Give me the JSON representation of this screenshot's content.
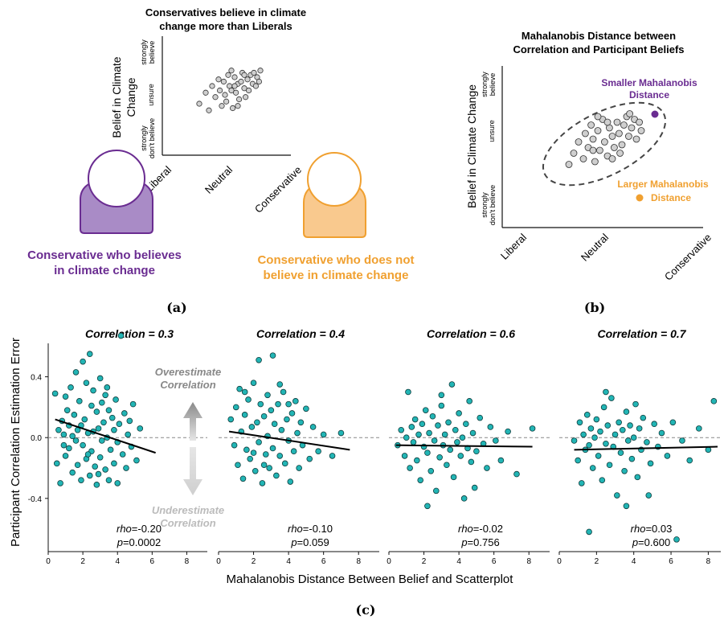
{
  "panel_a": {
    "title_line1": "Conservatives believe in climate",
    "title_line2": "change more than Liberals",
    "ylabel_line1": "Belief in Climate",
    "ylabel_line2": "Change",
    "yticks": [
      "strongly don't believe",
      "unsure",
      "strongly believe"
    ],
    "ytick_strong_1": "strongly",
    "ytick_strong_2": "believe",
    "ytick_dont_1": "strongly",
    "ytick_dont_2": "don't believe",
    "xticks": [
      "Liberal",
      "Neutral",
      "Conservative"
    ],
    "person_left_line1": "Conservative who believes",
    "person_left_line2": "in climate change",
    "person_right_line1": "Conservative who does not",
    "person_right_line2": "believe in climate change",
    "label": "(a)",
    "colors": {
      "left": "#6a2c91",
      "left_fill": "#a98bc6",
      "right": "#f0a030",
      "right_fill": "#f9c98e"
    }
  },
  "panel_b": {
    "title_line1": "Mahalanobis Distance between",
    "title_line2": "Correlation and Participant Beliefs",
    "ylabel": "Belief in Climate Change",
    "xticks": [
      "Liberal",
      "Neutral",
      "Conservative"
    ],
    "smaller_line1": "Smaller Mahalanobis",
    "smaller_line2": "Distance",
    "larger_line1": "Larger Mahalanobis",
    "larger_line2": "Distance",
    "label": "(b)"
  },
  "panel_c": {
    "label": "(c)",
    "ylabel": "Participant Correlation Estimation Error",
    "xlabel": "Mahalanobis Distance Between Belief and Scatterplot",
    "overestimate_line1": "Overestimate",
    "overestimate_line2": "Correlation",
    "underestimate_line1": "Underestimate",
    "underestimate_line2": "Correlation",
    "point_color": "#22b5b5"
  },
  "chart_data": [
    {
      "type": "scatter",
      "title": "Correlation = 0.3",
      "xlim": [
        0,
        9
      ],
      "ylim": [
        -0.75,
        0.62
      ],
      "xticks": [
        0,
        2,
        4,
        6,
        8
      ],
      "yticks": [
        -0.4,
        0.0,
        0.4
      ],
      "ytick_labels": [
        "-0.4",
        "0.0",
        "0.4"
      ],
      "rho_label": "rho",
      "rho_value": "=-0.20",
      "p_label": "p",
      "p_value": "=0.0002",
      "trend": {
        "x": [
          0.4,
          6.2
        ],
        "y": [
          0.12,
          -0.1
        ]
      },
      "points": [
        [
          0.4,
          0.29
        ],
        [
          0.5,
          -0.17
        ],
        [
          0.6,
          0.05
        ],
        [
          0.7,
          -0.3
        ],
        [
          0.8,
          0.11
        ],
        [
          0.9,
          0.02
        ],
        [
          1.0,
          0.27
        ],
        [
          1.0,
          -0.12
        ],
        [
          1.1,
          0.18
        ],
        [
          1.2,
          -0.07
        ],
        [
          1.3,
          0.33
        ],
        [
          1.4,
          0.01
        ],
        [
          1.4,
          -0.23
        ],
        [
          1.5,
          0.15
        ],
        [
          1.6,
          -0.02
        ],
        [
          1.6,
          0.43
        ],
        [
          1.7,
          -0.18
        ],
        [
          1.8,
          0.24
        ],
        [
          1.9,
          0.08
        ],
        [
          1.9,
          -0.28
        ],
        [
          2.0,
          0.5
        ],
        [
          2.0,
          -0.05
        ],
        [
          2.1,
          0.12
        ],
        [
          2.2,
          0.36
        ],
        [
          2.2,
          -0.14
        ],
        [
          2.3,
          0.03
        ],
        [
          2.4,
          0.55
        ],
        [
          2.4,
          -0.25
        ],
        [
          2.5,
          0.21
        ],
        [
          2.5,
          -0.09
        ],
        [
          2.6,
          0.31
        ],
        [
          2.6,
          0.04
        ],
        [
          2.7,
          -0.19
        ],
        [
          2.8,
          0.17
        ],
        [
          2.8,
          -0.31
        ],
        [
          2.9,
          0.06
        ],
        [
          3.0,
          0.39
        ],
        [
          3.0,
          -0.13
        ],
        [
          3.1,
          0.23
        ],
        [
          3.1,
          -0.02
        ],
        [
          3.2,
          0.1
        ],
        [
          3.3,
          -0.21
        ],
        [
          3.3,
          0.28
        ],
        [
          3.4,
          0.0
        ],
        [
          3.5,
          0.18
        ],
        [
          3.5,
          -0.28
        ],
        [
          3.6,
          -0.08
        ],
        [
          3.7,
          0.13
        ],
        [
          3.8,
          0.05
        ],
        [
          3.8,
          -0.17
        ],
        [
          3.9,
          0.25
        ],
        [
          4.0,
          -0.03
        ],
        [
          4.0,
          -0.3
        ],
        [
          4.1,
          0.09
        ],
        [
          4.2,
          0.67
        ],
        [
          4.3,
          -0.11
        ],
        [
          4.4,
          0.16
        ],
        [
          4.5,
          -0.2
        ],
        [
          4.6,
          0.02
        ],
        [
          4.7,
          0.11
        ],
        [
          4.8,
          -0.06
        ],
        [
          4.9,
          0.22
        ],
        [
          5.1,
          -0.15
        ],
        [
          5.3,
          0.06
        ],
        [
          1.2,
          0.08
        ],
        [
          2.3,
          -0.11
        ],
        [
          3.4,
          0.33
        ],
        [
          1.7,
          0.05
        ],
        [
          2.9,
          -0.24
        ],
        [
          0.9,
          -0.05
        ]
      ]
    },
    {
      "type": "scatter",
      "title": "Correlation = 0.4",
      "xlim": [
        0,
        9
      ],
      "ylim": [
        -0.75,
        0.62
      ],
      "xticks": [
        0,
        2,
        4,
        6,
        8
      ],
      "rho_label": "rho",
      "rho_value": "=-0.10",
      "p_label": "p",
      "p_value": "=0.059",
      "trend": {
        "x": [
          0.6,
          7.5
        ],
        "y": [
          0.04,
          -0.08
        ]
      },
      "points": [
        [
          0.7,
          0.12
        ],
        [
          0.9,
          -0.05
        ],
        [
          1.0,
          0.2
        ],
        [
          1.1,
          -0.18
        ],
        [
          1.2,
          0.32
        ],
        [
          1.3,
          0.04
        ],
        [
          1.4,
          -0.27
        ],
        [
          1.5,
          0.15
        ],
        [
          1.6,
          -0.08
        ],
        [
          1.7,
          0.25
        ],
        [
          1.8,
          -0.14
        ],
        [
          1.9,
          0.07
        ],
        [
          2.0,
          0.36
        ],
        [
          2.1,
          -0.22
        ],
        [
          2.2,
          0.1
        ],
        [
          2.3,
          0.51
        ],
        [
          2.3,
          -0.03
        ],
        [
          2.4,
          0.22
        ],
        [
          2.5,
          -0.3
        ],
        [
          2.6,
          0.14
        ],
        [
          2.7,
          -0.11
        ],
        [
          2.8,
          0.28
        ],
        [
          2.8,
          0.01
        ],
        [
          2.9,
          -0.2
        ],
        [
          3.0,
          0.18
        ],
        [
          3.1,
          -0.07
        ],
        [
          3.1,
          0.54
        ],
        [
          3.2,
          0.09
        ],
        [
          3.3,
          -0.25
        ],
        [
          3.4,
          0.22
        ],
        [
          3.5,
          -0.12
        ],
        [
          3.6,
          0.05
        ],
        [
          3.7,
          0.3
        ],
        [
          3.8,
          -0.17
        ],
        [
          3.9,
          0.12
        ],
        [
          4.0,
          -0.02
        ],
        [
          4.1,
          -0.29
        ],
        [
          4.2,
          0.16
        ],
        [
          4.3,
          -0.09
        ],
        [
          4.4,
          0.24
        ],
        [
          4.5,
          0.03
        ],
        [
          4.6,
          -0.2
        ],
        [
          4.7,
          0.1
        ],
        [
          4.8,
          -0.05
        ],
        [
          5.0,
          0.19
        ],
        [
          5.2,
          -0.14
        ],
        [
          5.4,
          0.07
        ],
        [
          5.7,
          -0.09
        ],
        [
          6.0,
          0.02
        ],
        [
          6.5,
          -0.12
        ],
        [
          7.0,
          0.03
        ],
        [
          1.5,
          0.3
        ],
        [
          2.6,
          -0.18
        ],
        [
          3.5,
          0.35
        ],
        [
          4.0,
          0.22
        ],
        [
          2.0,
          -0.1
        ]
      ]
    },
    {
      "type": "scatter",
      "title": "Correlation = 0.6",
      "xlim": [
        0,
        9
      ],
      "ylim": [
        -0.75,
        0.62
      ],
      "xticks": [
        0,
        2,
        4,
        6,
        8
      ],
      "rho_label": "rho",
      "rho_value": "=-0.02",
      "p_label": "p",
      "p_value": "=0.756",
      "trend": {
        "x": [
          0.4,
          8.2
        ],
        "y": [
          -0.05,
          -0.06
        ]
      },
      "points": [
        [
          0.5,
          -0.05
        ],
        [
          0.7,
          0.05
        ],
        [
          0.9,
          -0.12
        ],
        [
          1.0,
          0.0
        ],
        [
          1.1,
          0.3
        ],
        [
          1.2,
          -0.2
        ],
        [
          1.3,
          0.07
        ],
        [
          1.4,
          -0.03
        ],
        [
          1.5,
          0.12
        ],
        [
          1.6,
          -0.15
        ],
        [
          1.7,
          0.02
        ],
        [
          1.8,
          -0.28
        ],
        [
          1.9,
          0.09
        ],
        [
          2.0,
          -0.06
        ],
        [
          2.1,
          0.18
        ],
        [
          2.2,
          -0.1
        ],
        [
          2.3,
          0.03
        ],
        [
          2.4,
          -0.22
        ],
        [
          2.5,
          0.14
        ],
        [
          2.6,
          -0.02
        ],
        [
          2.7,
          -0.35
        ],
        [
          2.8,
          0.08
        ],
        [
          2.9,
          -0.13
        ],
        [
          3.0,
          0.21
        ],
        [
          3.1,
          -0.05
        ],
        [
          3.2,
          0.02
        ],
        [
          3.3,
          -0.18
        ],
        [
          3.4,
          0.1
        ],
        [
          3.5,
          -0.08
        ],
        [
          3.6,
          0.35
        ],
        [
          3.7,
          -0.26
        ],
        [
          3.8,
          0.05
        ],
        [
          3.9,
          -0.03
        ],
        [
          4.0,
          0.16
        ],
        [
          4.1,
          -0.12
        ],
        [
          4.2,
          0.0
        ],
        [
          4.3,
          -0.4
        ],
        [
          4.4,
          0.09
        ],
        [
          4.5,
          -0.07
        ],
        [
          4.6,
          0.24
        ],
        [
          4.7,
          -0.16
        ],
        [
          4.8,
          0.03
        ],
        [
          5.0,
          -0.09
        ],
        [
          5.2,
          0.13
        ],
        [
          5.4,
          -0.04
        ],
        [
          5.6,
          -0.2
        ],
        [
          5.8,
          0.07
        ],
        [
          6.1,
          -0.02
        ],
        [
          6.4,
          -0.15
        ],
        [
          6.8,
          0.04
        ],
        [
          7.3,
          -0.24
        ],
        [
          8.2,
          0.06
        ],
        [
          2.2,
          -0.45
        ],
        [
          3.0,
          0.28
        ],
        [
          4.9,
          -0.33
        ]
      ]
    },
    {
      "type": "scatter",
      "title": "Correlation = 0.7",
      "xlim": [
        0,
        8.5
      ],
      "ylim": [
        -0.75,
        0.62
      ],
      "xticks": [
        0,
        2,
        4,
        6,
        8
      ],
      "rho_label": "rho",
      "rho_value": "=0.03",
      "p_label": "p",
      "p_value": "=0.600",
      "trend": {
        "x": [
          0.8,
          8.5
        ],
        "y": [
          -0.08,
          -0.06
        ]
      },
      "points": [
        [
          0.8,
          -0.02
        ],
        [
          1.0,
          -0.15
        ],
        [
          1.1,
          0.1
        ],
        [
          1.2,
          -0.3
        ],
        [
          1.3,
          0.02
        ],
        [
          1.4,
          -0.08
        ],
        [
          1.5,
          0.15
        ],
        [
          1.6,
          -0.62
        ],
        [
          1.6,
          -0.05
        ],
        [
          1.7,
          0.06
        ],
        [
          1.8,
          -0.2
        ],
        [
          1.9,
          0.0
        ],
        [
          2.0,
          0.12
        ],
        [
          2.1,
          -0.12
        ],
        [
          2.2,
          0.04
        ],
        [
          2.3,
          -0.28
        ],
        [
          2.4,
          0.2
        ],
        [
          2.5,
          -0.04
        ],
        [
          2.6,
          0.08
        ],
        [
          2.7,
          -0.18
        ],
        [
          2.8,
          0.26
        ],
        [
          2.9,
          -0.06
        ],
        [
          3.0,
          0.02
        ],
        [
          3.1,
          -0.38
        ],
        [
          3.2,
          0.1
        ],
        [
          3.3,
          -0.1
        ],
        [
          3.4,
          0.05
        ],
        [
          3.5,
          -0.22
        ],
        [
          3.6,
          0.17
        ],
        [
          3.7,
          -0.02
        ],
        [
          3.8,
          0.08
        ],
        [
          3.9,
          -0.14
        ],
        [
          4.0,
          0.0
        ],
        [
          4.1,
          0.22
        ],
        [
          4.2,
          -0.26
        ],
        [
          4.3,
          0.06
        ],
        [
          4.4,
          -0.08
        ],
        [
          4.5,
          0.13
        ],
        [
          4.7,
          -0.03
        ],
        [
          4.9,
          -0.17
        ],
        [
          5.1,
          0.09
        ],
        [
          5.3,
          -0.06
        ],
        [
          5.5,
          0.03
        ],
        [
          5.8,
          -0.12
        ],
        [
          6.1,
          0.1
        ],
        [
          6.3,
          -0.67
        ],
        [
          6.6,
          -0.02
        ],
        [
          7.0,
          -0.15
        ],
        [
          7.5,
          0.06
        ],
        [
          8.0,
          -0.08
        ],
        [
          8.3,
          0.24
        ],
        [
          2.5,
          0.3
        ],
        [
          3.6,
          -0.45
        ],
        [
          4.8,
          -0.38
        ]
      ]
    }
  ],
  "panel_a_points": [
    [
      0.0,
      -0.2
    ],
    [
      0.1,
      0.05
    ],
    [
      0.15,
      -0.35
    ],
    [
      0.2,
      0.2
    ],
    [
      0.25,
      -0.05
    ],
    [
      0.3,
      0.35
    ],
    [
      0.32,
      0.1
    ],
    [
      0.35,
      -0.25
    ],
    [
      0.38,
      0.3
    ],
    [
      0.4,
      0.0
    ],
    [
      0.42,
      -0.15
    ],
    [
      0.45,
      0.45
    ],
    [
      0.47,
      0.2
    ],
    [
      0.5,
      0.1
    ],
    [
      0.52,
      -0.3
    ],
    [
      0.55,
      0.4
    ],
    [
      0.57,
      0.05
    ],
    [
      0.6,
      0.25
    ],
    [
      0.62,
      -0.1
    ],
    [
      0.65,
      0.3
    ],
    [
      0.67,
      0.5
    ],
    [
      0.7,
      0.15
    ],
    [
      0.72,
      -0.05
    ],
    [
      0.75,
      0.35
    ],
    [
      0.77,
      0.1
    ],
    [
      0.8,
      0.45
    ],
    [
      0.83,
      0.25
    ],
    [
      0.85,
      0.5
    ],
    [
      0.88,
      0.2
    ],
    [
      0.9,
      0.4
    ],
    [
      0.93,
      0.3
    ],
    [
      0.95,
      0.55
    ],
    [
      0.5,
      0.55
    ],
    [
      0.6,
      -0.25
    ],
    [
      0.7,
      0.45
    ],
    [
      0.55,
      0.2
    ]
  ],
  "panel_b_points": [
    [
      0.15,
      -0.35
    ],
    [
      0.2,
      -0.15
    ],
    [
      0.25,
      0.05
    ],
    [
      0.3,
      -0.25
    ],
    [
      0.32,
      0.2
    ],
    [
      0.35,
      -0.05
    ],
    [
      0.38,
      0.35
    ],
    [
      0.4,
      0.1
    ],
    [
      0.42,
      -0.3
    ],
    [
      0.45,
      0.25
    ],
    [
      0.47,
      -0.1
    ],
    [
      0.5,
      0.45
    ],
    [
      0.52,
      0.05
    ],
    [
      0.55,
      -0.2
    ],
    [
      0.57,
      0.3
    ],
    [
      0.6,
      0.15
    ],
    [
      0.62,
      -0.05
    ],
    [
      0.65,
      0.4
    ],
    [
      0.67,
      0.2
    ],
    [
      0.7,
      0.0
    ],
    [
      0.72,
      0.35
    ],
    [
      0.75,
      0.5
    ],
    [
      0.77,
      0.15
    ],
    [
      0.8,
      0.3
    ],
    [
      0.83,
      0.45
    ],
    [
      0.85,
      0.1
    ],
    [
      0.88,
      0.4
    ],
    [
      0.9,
      0.25
    ],
    [
      0.45,
      0.5
    ],
    [
      0.6,
      -0.25
    ],
    [
      0.55,
      0.4
    ],
    [
      0.68,
      -0.15
    ],
    [
      0.4,
      -0.1
    ],
    [
      0.78,
      0.55
    ]
  ]
}
